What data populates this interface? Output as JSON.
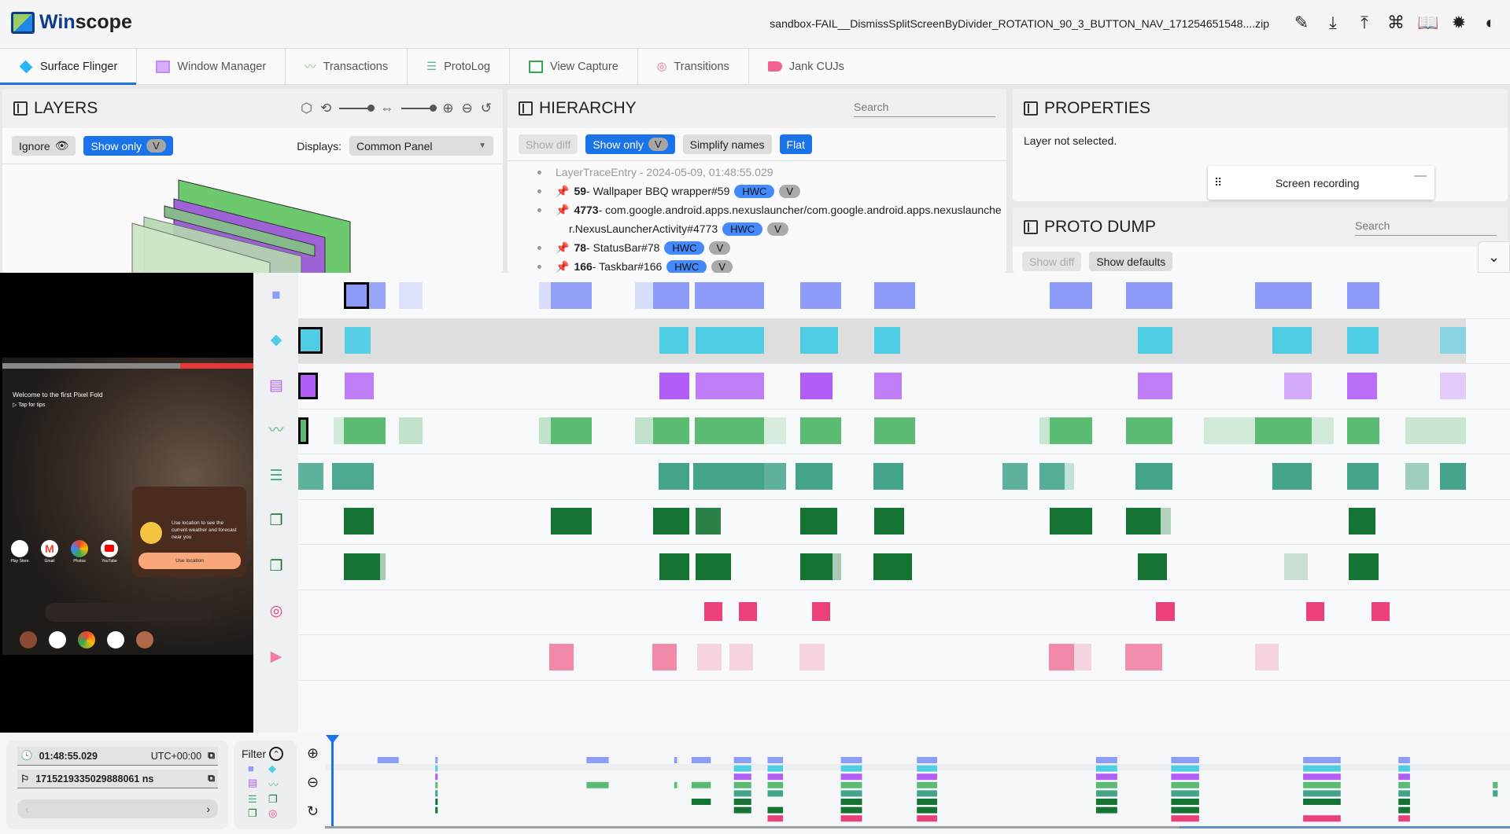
{
  "app": {
    "title_a": "Win",
    "title_b": "scope",
    "filename": "sandbox-FAIL__DismissSplitScreenByDivider_ROTATION_90_3_BUTTON_NAV_171254651548....zip",
    "header_icons": [
      "edit-icon",
      "download-icon",
      "upload-icon",
      "keyboard-shortcuts-icon",
      "documentation-icon",
      "bug-report-icon",
      "dark-mode-icon"
    ]
  },
  "tabs": [
    {
      "label": "Surface Flinger",
      "icon": "layers-icon",
      "color": "#29b6f6"
    },
    {
      "label": "Window Manager",
      "icon": "window-icon",
      "color": "#c58af9"
    },
    {
      "label": "Transactions",
      "icon": "timeline-icon",
      "color": "#81c995"
    },
    {
      "label": "ProtoLog",
      "icon": "list-icon",
      "color": "#5bb89a"
    },
    {
      "label": "View Capture",
      "icon": "view-capture-icon",
      "color": "#34a853"
    },
    {
      "label": "Transitions",
      "icon": "transitions-icon",
      "color": "#f06292"
    },
    {
      "label": "Jank CUJs",
      "icon": "label-icon",
      "color": "#f06292"
    }
  ],
  "layers": {
    "title": "LAYERS",
    "ignore": "Ignore",
    "show_only": "Show only",
    "v": "V",
    "displays_label": "Displays:",
    "displays_value": "Common Panel"
  },
  "hierarchy": {
    "title": "HIERARCHY",
    "search_placeholder": "Search",
    "show_diff": "Show diff",
    "show_only": "Show only",
    "v": "V",
    "simplify": "Simplify names",
    "flat": "Flat",
    "root": "LayerTraceEntry - 2024-05-09, 01:48:55.029",
    "nodes": [
      {
        "id": "59",
        "name": " - Wallpaper BBQ wrapper#59",
        "line2": ""
      },
      {
        "id": "4773",
        "name": " - com.google.android.apps.nexuslauncher/com.google.android.apps.nexuslaunche",
        "line2": "r.NexusLauncherActivity#4773"
      },
      {
        "id": "78",
        "name": " - StatusBar#78",
        "line2": ""
      },
      {
        "id": "166",
        "name": " - Taskbar#166",
        "line2": ""
      }
    ],
    "hwc": "HWC",
    "vbadge": "V"
  },
  "properties": {
    "title": "PROPERTIES",
    "empty": "Layer not selected.",
    "screen_recording": "Screen recording"
  },
  "proto_dump": {
    "title": "PROTO DUMP",
    "search_placeholder": "Search",
    "show_diff": "Show diff",
    "show_defaults": "Show defaults"
  },
  "screen": {
    "welcome": "Welcome to the first Pixel Fold",
    "tips": "Tap for tips",
    "weather": "Use location to see the current weather and forecast near you",
    "use_location": "Use location",
    "apps": [
      "Play Store",
      "Gmail",
      "Photos",
      "YouTube"
    ]
  },
  "timeline": {
    "rows": [
      {
        "icon": "screen-recording-icon",
        "color": "#8c9cf8"
      },
      {
        "icon": "surface-flinger-icon",
        "color": "#4fcde5"
      },
      {
        "icon": "window-manager-icon",
        "color": "#b05ef5"
      },
      {
        "icon": "transactions-icon",
        "color": "#5bbb73"
      },
      {
        "icon": "protolog-icon",
        "color": "#43a48a"
      },
      {
        "icon": "view-capture-icon",
        "color": "#157334"
      },
      {
        "icon": "view-capture-icon",
        "color": "#157334"
      },
      {
        "icon": "transitions-icon",
        "color": "#ec407a"
      },
      {
        "icon": "jank-cuj-icon",
        "color": "#f07c9f"
      }
    ]
  },
  "footer": {
    "time": "01:48:55.029",
    "timezone": "UTC+00:00",
    "ns": "1715219335029888061 ns",
    "filter": "Filter"
  }
}
